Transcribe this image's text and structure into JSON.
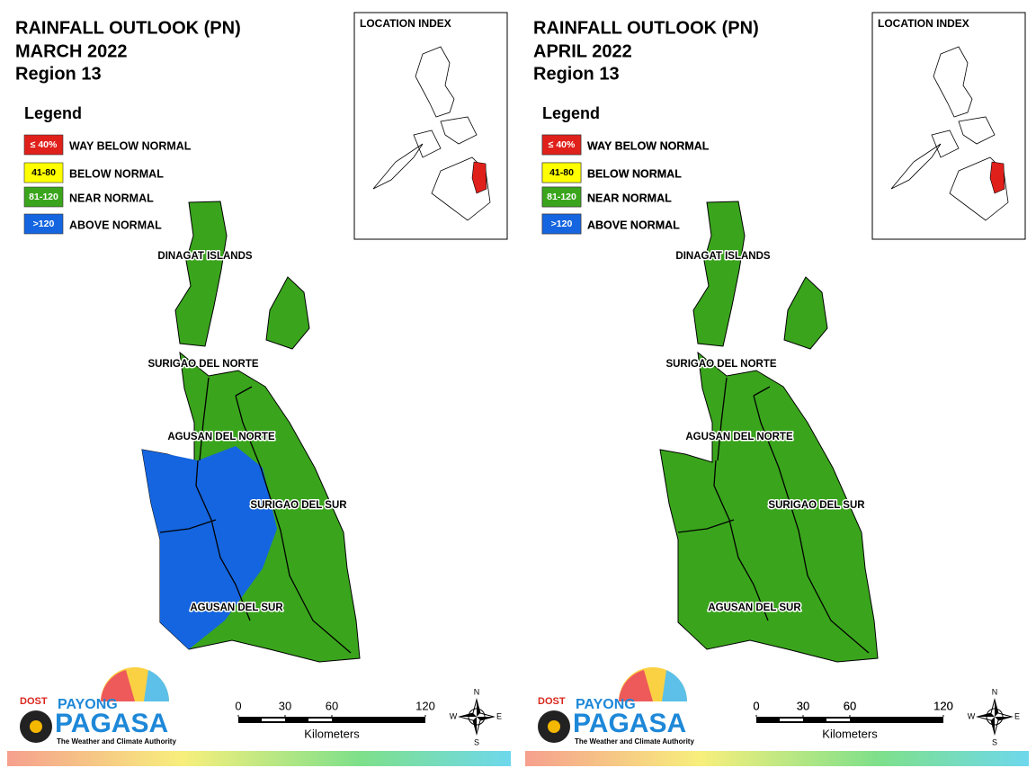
{
  "panels": [
    {
      "title": "RAINFALL OUTLOOK (PN)",
      "period": "MARCH 2022",
      "region": "Region 13",
      "legend": {
        "title": "Legend",
        "items": [
          {
            "code": "≤ 40%",
            "label": "WAY BELOW NORMAL",
            "color": "#e0201b"
          },
          {
            "code": "41-80",
            "label": "BELOW NORMAL",
            "color": "#ffff00"
          },
          {
            "code": "81-120",
            "label": "NEAR NORMAL",
            "color": "#3aa51c"
          },
          {
            "code": ">120",
            "label": "ABOVE NORMAL",
            "color": "#1565e0"
          }
        ]
      },
      "location_index": "LOCATION INDEX",
      "provinces": [
        "DINAGAT ISLANDS",
        "SURIGAO DEL NORTE",
        "AGUSAN DEL NORTE",
        "SURIGAO DEL SUR",
        "AGUSAN DEL SUR"
      ],
      "scale": {
        "ticks": [
          0,
          30,
          60,
          120
        ],
        "unit": "Kilometers"
      },
      "compass": {
        "n": "N",
        "e": "E",
        "s": "S",
        "w": "W"
      },
      "logo": {
        "dost": "DOST",
        "payong": "PAYONG",
        "pagasa": "PAGASA",
        "tagline": "The Weather and Climate Authority"
      }
    },
    {
      "title": "RAINFALL OUTLOOK (PN)",
      "period": "APRIL 2022",
      "region": "Region 13",
      "legend": {
        "title": "Legend",
        "items": [
          {
            "code": "≤ 40%",
            "label": "WAY BELOW NORMAL",
            "color": "#e0201b"
          },
          {
            "code": "41-80",
            "label": "BELOW NORMAL",
            "color": "#ffff00"
          },
          {
            "code": "81-120",
            "label": "NEAR NORMAL",
            "color": "#3aa51c"
          },
          {
            "code": ">120",
            "label": "ABOVE NORMAL",
            "color": "#1565e0"
          }
        ]
      },
      "location_index": "LOCATION INDEX",
      "provinces": [
        "DINAGAT ISLANDS",
        "SURIGAO DEL NORTE",
        "AGUSAN DEL NORTE",
        "SURIGAO DEL SUR",
        "AGUSAN DEL SUR"
      ],
      "scale": {
        "ticks": [
          0,
          30,
          60,
          120
        ],
        "unit": "Kilometers"
      },
      "compass": {
        "n": "N",
        "e": "E",
        "s": "S",
        "w": "W"
      },
      "logo": {
        "dost": "DOST",
        "payong": "PAYONG",
        "pagasa": "PAGASA",
        "tagline": "The Weather and Climate Authority"
      }
    }
  ]
}
